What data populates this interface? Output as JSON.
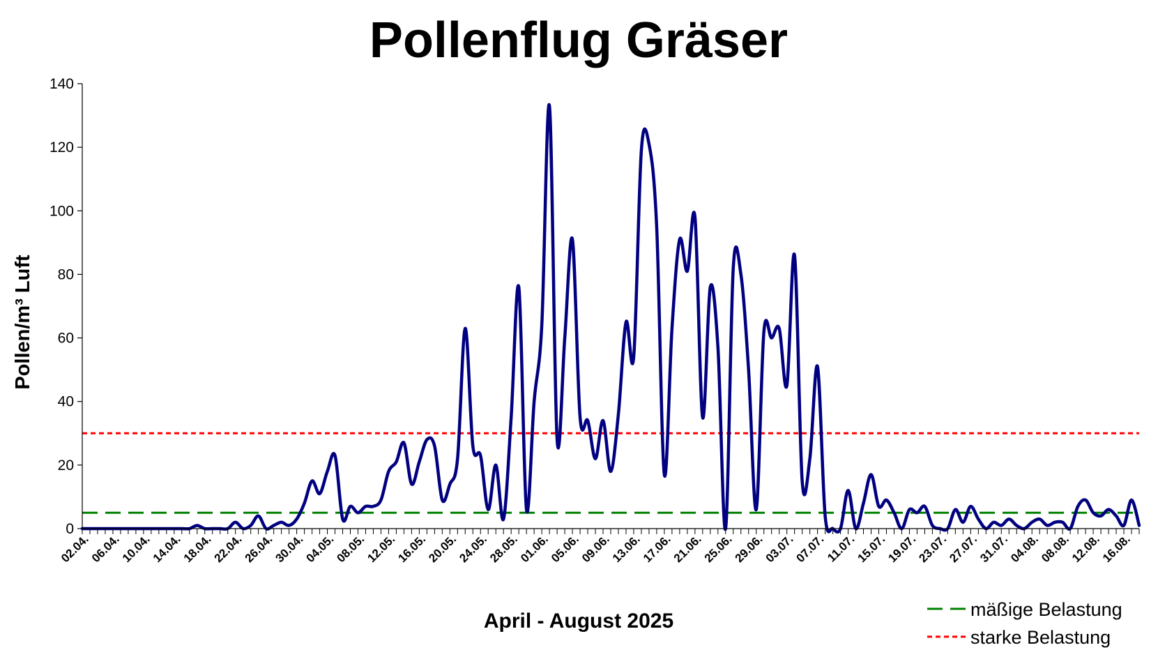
{
  "chart_data": {
    "type": "line",
    "title": "Pollenflug Gräser",
    "ylabel": "Pollen/m³ Luft",
    "xlabel": "April - August 2025",
    "ylim": [
      0,
      140
    ],
    "yticks": [
      0,
      20,
      40,
      60,
      80,
      100,
      120,
      140
    ],
    "start_date": "02.04.",
    "xtick_labels": [
      "02.04.",
      "06.04.",
      "10.04.",
      "14.04.",
      "18.04.",
      "22.04.",
      "26.04.",
      "30.04.",
      "04.05.",
      "08.05.",
      "12.05.",
      "16.05.",
      "20.05.",
      "24.05.",
      "28.05.",
      "01.06.",
      "05.06.",
      "09.06.",
      "13.06.",
      "17.06.",
      "21.06.",
      "25.06.",
      "29.06.",
      "03.07.",
      "07.07.",
      "11.07.",
      "15.07.",
      "19.07.",
      "23.07.",
      "27.07.",
      "31.07.",
      "04.08.",
      "08.08.",
      "12.08.",
      "16.08."
    ],
    "grid": false,
    "legend_position": "bottom-right",
    "series": [
      {
        "name": "",
        "color": "#000080",
        "values": [
          0,
          0,
          0,
          0,
          0,
          0,
          0,
          0,
          0,
          0,
          0,
          0,
          0,
          0,
          0,
          1,
          0,
          0,
          0,
          0,
          2,
          0,
          1,
          4,
          0,
          1,
          2,
          1,
          3,
          8,
          15,
          11,
          18,
          23,
          3,
          7,
          5,
          7,
          7,
          9,
          18,
          21,
          27,
          14,
          21,
          28,
          26,
          9,
          14,
          22,
          63,
          26,
          23,
          6,
          20,
          3,
          35,
          76,
          6,
          40,
          64,
          133,
          28,
          60,
          91,
          35,
          34,
          22,
          34,
          18,
          36,
          65,
          54,
          119,
          121,
          95,
          17,
          63,
          91,
          81,
          98,
          35,
          76,
          57,
          0,
          82,
          80,
          50,
          6,
          62,
          60,
          63,
          45,
          86,
          15,
          22,
          51,
          4,
          0,
          0,
          12,
          0,
          8,
          17,
          7,
          9,
          5,
          0,
          6,
          5,
          7,
          1,
          0,
          0,
          6,
          2,
          7,
          3,
          0,
          2,
          1,
          3,
          1,
          0,
          2,
          3,
          1,
          2,
          2,
          0,
          7,
          9,
          5,
          4,
          6,
          4,
          1,
          9,
          1
        ]
      }
    ],
    "reference_lines": [
      {
        "name": "mäßige Belastung",
        "value": 5,
        "color": "#008000",
        "style": "dashed"
      },
      {
        "name": "starke Belastung",
        "value": 30,
        "color": "#ff0000",
        "style": "dotted"
      }
    ]
  }
}
